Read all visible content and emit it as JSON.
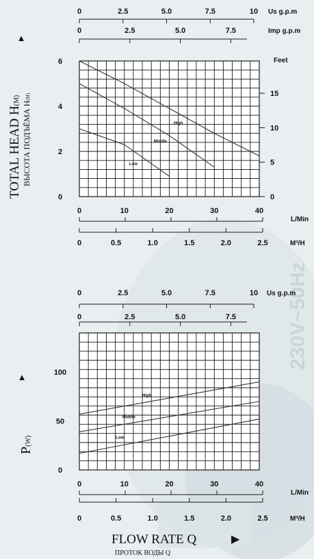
{
  "colors": {
    "background": "#e9eef0",
    "watermark": "#5a7a82",
    "grid": "#1a1a1a",
    "curve": "#333333",
    "text": "#111111"
  },
  "head_chart": {
    "ylabel_en_main": "TOTAL HEAD H",
    "ylabel_en_sub": "(M)",
    "ylabel_ru_main": "ВЫСОТА ПОДЪЁМА H",
    "ylabel_ru_sub": "(M)",
    "up_arrow_icon": "▲"
  },
  "power_chart": {
    "ylabel_main": "P",
    "ylabel_sub": "(W)",
    "up_arrow_icon": "▲"
  },
  "footer": {
    "xlabel_en": "FLOW RATE Q",
    "xlabel_ru": "ПРОТОК ВОДЫ Q",
    "right_arrow_icon": "▶"
  },
  "watermark_text": "230V~50Hz",
  "chart_data": [
    {
      "type": "line",
      "title": "",
      "ylabel": "TOTAL HEAD H(M)",
      "xlabel": "L/Min",
      "xlim": [
        0,
        40
      ],
      "ylim": [
        0,
        6
      ],
      "y2_unit": "Feet",
      "y2_ticks": [
        {
          "v": 0,
          "label": "0"
        },
        {
          "v": 5,
          "label": "5"
        },
        {
          "v": 10,
          "label": "10"
        },
        {
          "v": 15,
          "label": "15"
        }
      ],
      "left_ticks": [
        {
          "v": 0,
          "label": "0"
        },
        {
          "v": 2,
          "label": "2"
        },
        {
          "v": 4,
          "label": "4"
        },
        {
          "v": 6,
          "label": "6"
        }
      ],
      "bottom_ticks": [
        {
          "v": 0,
          "label": "0"
        },
        {
          "v": 10,
          "label": "10"
        },
        {
          "v": 20,
          "label": "20"
        },
        {
          "v": 30,
          "label": "30"
        },
        {
          "v": 40,
          "label": "40"
        }
      ],
      "top_axes": [
        {
          "unit": "Us g.p.m",
          "ticks": [
            {
              "v": 0,
              "label": "0"
            },
            {
              "v": 2.5,
              "label": "2.5"
            },
            {
              "v": 5,
              "label": "5.0"
            },
            {
              "v": 7.5,
              "label": "7.5"
            },
            {
              "v": 10,
              "label": "10"
            }
          ]
        },
        {
          "unit": "Imp g.p.m",
          "ticks": [
            {
              "v": 0,
              "label": "0"
            },
            {
              "v": 2.5,
              "label": "2.5"
            },
            {
              "v": 5,
              "label": "5.0"
            },
            {
              "v": 7.5,
              "label": "7.5"
            }
          ]
        }
      ],
      "bottom_axis2": {
        "unit": "M³/H",
        "ticks": [
          {
            "v": 0,
            "label": "0"
          },
          {
            "v": 0.5,
            "label": "0.5"
          },
          {
            "v": 1,
            "label": "1.0"
          },
          {
            "v": 1.5,
            "label": "1.5"
          },
          {
            "v": 2,
            "label": "2.0"
          },
          {
            "v": 2.5,
            "label": "2.5"
          }
        ]
      },
      "series": [
        {
          "name": "High",
          "x": [
            0,
            10,
            20,
            30,
            40
          ],
          "y": [
            6.0,
            5.0,
            3.9,
            2.8,
            1.8
          ]
        },
        {
          "name": "Middle",
          "x": [
            0,
            10,
            20,
            30
          ],
          "y": [
            5.0,
            3.9,
            2.7,
            1.3
          ]
        },
        {
          "name": "Low",
          "x": [
            0,
            10,
            20
          ],
          "y": [
            3.0,
            2.3,
            0.9
          ]
        }
      ],
      "label_positions": [
        {
          "x": 22,
          "y": 3.2
        },
        {
          "x": 18,
          "y": 2.4
        },
        {
          "x": 12,
          "y": 1.4
        }
      ]
    },
    {
      "type": "line",
      "title": "",
      "ylabel": "P(W)",
      "xlabel": "L/Min",
      "xlim": [
        0,
        40
      ],
      "ylim": [
        0,
        140
      ],
      "left_ticks": [
        {
          "v": 0,
          "label": "0"
        },
        {
          "v": 50,
          "label": "50"
        },
        {
          "v": 100,
          "label": "100"
        }
      ],
      "bottom_ticks": [
        {
          "v": 0,
          "label": "0"
        },
        {
          "v": 10,
          "label": "10"
        },
        {
          "v": 20,
          "label": "20"
        },
        {
          "v": 30,
          "label": "30"
        },
        {
          "v": 40,
          "label": "40"
        }
      ],
      "top_axes": [
        {
          "unit": "Us g.p.m",
          "ticks": [
            {
              "v": 0,
              "label": "0"
            },
            {
              "v": 2.5,
              "label": "2.5"
            },
            {
              "v": 5,
              "label": "5.0"
            },
            {
              "v": 7.5,
              "label": "7.5"
            },
            {
              "v": 10,
              "label": "10"
            }
          ]
        },
        {
          "unit": "",
          "ticks": [
            {
              "v": 0,
              "label": "0"
            },
            {
              "v": 2.5,
              "label": "2.5"
            },
            {
              "v": 5,
              "label": "5.0"
            },
            {
              "v": 7.5,
              "label": "7.5"
            }
          ]
        }
      ],
      "bottom_axis2": {
        "unit": "M³/H",
        "ticks": [
          {
            "v": 0,
            "label": "0"
          },
          {
            "v": 0.5,
            "label": "0.5"
          },
          {
            "v": 1,
            "label": "1.0"
          },
          {
            "v": 1.5,
            "label": "1.5"
          },
          {
            "v": 2,
            "label": "2.0"
          },
          {
            "v": 2.5,
            "label": "2.5"
          }
        ]
      },
      "series": [
        {
          "name": "High",
          "x": [
            0,
            40
          ],
          "y": [
            57,
            90
          ]
        },
        {
          "name": "Middle",
          "x": [
            0,
            40
          ],
          "y": [
            39,
            70
          ]
        },
        {
          "name": "Low",
          "x": [
            0,
            40
          ],
          "y": [
            17,
            52
          ]
        }
      ],
      "label_positions": [
        {
          "x": 15,
          "y": 75
        },
        {
          "x": 11,
          "y": 53
        },
        {
          "x": 9,
          "y": 32
        }
      ]
    }
  ]
}
